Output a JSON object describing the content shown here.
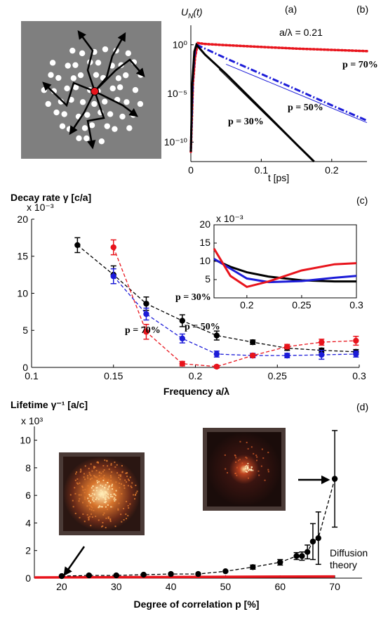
{
  "panel_labels": [
    "(a)",
    "(b)",
    "(c)",
    "(d)"
  ],
  "chart_data": [
    {
      "type": "line",
      "y_label_parts": [
        "U",
        "N",
        "(t)"
      ],
      "x_label": "t [ps]",
      "log_y": true,
      "xlim": [
        0,
        0.25
      ],
      "xticks": [
        0,
        0.1,
        0.2
      ],
      "ylim": [
        1e-12,
        100
      ],
      "yticks": [
        {
          "value": 1,
          "label": "10⁰"
        },
        {
          "value": 1e-05,
          "label": "10⁻⁵"
        },
        {
          "value": 1e-10,
          "label": "10⁻¹⁰"
        }
      ],
      "annotations": [
        {
          "text": "a/λ = 0.21",
          "color": "#000000"
        },
        {
          "text": "p = 70%",
          "color": "#e8141c"
        },
        {
          "text": "p = 50%",
          "color": "#1c1cd8"
        },
        {
          "text": "p = 30%",
          "color": "#000000"
        }
      ],
      "series": [
        {
          "color": "#e8141c",
          "dash": "dotted",
          "width": 3.5,
          "x": [
            0,
            0.003,
            0.006,
            0.01,
            0.02,
            0.05,
            0.1,
            0.15,
            0.2,
            0.25
          ],
          "values": [
            1e-11,
            0.0001,
            0.05,
            1.5,
            1.2,
            0.9,
            0.6,
            0.4,
            0.3,
            0.22
          ]
        },
        {
          "color": "#1c1cd8",
          "dash": "dashdot",
          "width": 3,
          "x": [
            0,
            0.003,
            0.006,
            0.008,
            0.02,
            0.05,
            0.1,
            0.15,
            0.2,
            0.25
          ],
          "values": [
            1e-11,
            0.001,
            0.3,
            1,
            0.4,
            0.04,
            0.001,
            2.5e-05,
            6e-07,
            1.6e-08
          ]
        },
        {
          "color": "#000000",
          "dash": "solid",
          "width": 3,
          "x": [
            0,
            0.002,
            0.005,
            0.008,
            0.02,
            0.05,
            0.1,
            0.15,
            0.175
          ],
          "values": [
            1e-11,
            0.0001,
            0.2,
            1,
            0.1,
            0.001,
            2.5e-07,
            6e-11,
            1e-12
          ]
        },
        {
          "color": "#000000",
          "dash": "solid",
          "width": 1,
          "x": [
            0.04,
            0.16
          ],
          "values": [
            0.003,
            1e-11
          ]
        },
        {
          "color": "#1c1cd8",
          "dash": "solid",
          "width": 1,
          "x": [
            0.05,
            0.25
          ],
          "values": [
            0.01,
            1e-08
          ]
        },
        {
          "color": "#e8141c",
          "dash": "solid",
          "width": 1,
          "x": [
            0.01,
            0.25
          ],
          "values": [
            1.2,
            0.2
          ]
        }
      ]
    },
    {
      "type": "errorbar",
      "title": "Decay rate γ [c/a]",
      "y_multiplier": "x 10⁻³",
      "x_label": "Frequency a/λ",
      "xlim": [
        0.1,
        0.3
      ],
      "xticks": [
        0.1,
        0.15,
        0.2,
        0.25,
        0.3
      ],
      "ylim": [
        0,
        20
      ],
      "yticks": [
        0,
        5,
        10,
        15,
        20
      ],
      "annotations": [
        {
          "text": "p = 30%",
          "color": "#000000"
        },
        {
          "text": "p = 50%",
          "color": "#1c1cd8"
        },
        {
          "text": "p = 70%",
          "color": "#e8141c"
        }
      ],
      "series": [
        {
          "color": "#000000",
          "dash": "dashed",
          "width": 1.3,
          "x": [
            0.128,
            0.15,
            0.17,
            0.192,
            0.213,
            0.235,
            0.256,
            0.277,
            0.298
          ],
          "values": [
            16.5,
            12.5,
            8.6,
            6.3,
            4.3,
            3.4,
            2.6,
            2.3,
            2.1
          ],
          "errors": [
            1,
            1.2,
            0.9,
            0.8,
            0.6,
            0.3,
            0.3,
            0.3,
            0.3
          ]
        },
        {
          "color": "#1c1cd8",
          "dash": "dashed",
          "width": 1.3,
          "x": [
            0.15,
            0.17,
            0.192,
            0.213,
            0.235,
            0.256,
            0.277,
            0.298
          ],
          "values": [
            12.3,
            7.2,
            3.9,
            1.8,
            1.6,
            1.6,
            1.7,
            1.8
          ],
          "errors": [
            1,
            0.8,
            0.6,
            0.4,
            0.3,
            0.3,
            0.6,
            0.4
          ]
        },
        {
          "color": "#e8141c",
          "dash": "dashed",
          "width": 1.3,
          "x": [
            0.15,
            0.17,
            0.192,
            0.213,
            0.235,
            0.256,
            0.277,
            0.298
          ],
          "values": [
            16.2,
            4.8,
            0.5,
            0.1,
            1.6,
            2.8,
            3.4,
            3.6
          ],
          "errors": [
            1,
            1,
            0.3,
            0.2,
            0.2,
            0.3,
            0.4,
            0.6
          ]
        }
      ]
    },
    {
      "type": "line",
      "y_multiplier": "x 10⁻³",
      "xlim": [
        0.17,
        0.3
      ],
      "xticks": [
        0.2,
        0.25,
        0.3
      ],
      "ylim": [
        0,
        20
      ],
      "yticks": [
        5,
        10,
        15,
        20
      ],
      "series": [
        {
          "color": "#000000",
          "dash": "solid",
          "width": 3,
          "x": [
            0.17,
            0.185,
            0.2,
            0.22,
            0.25,
            0.28,
            0.3
          ],
          "values": [
            10.5,
            8.5,
            7,
            5.8,
            4.8,
            4.5,
            4.5
          ]
        },
        {
          "color": "#1c1cd8",
          "dash": "solid",
          "width": 3,
          "x": [
            0.17,
            0.185,
            0.2,
            0.22,
            0.25,
            0.28,
            0.3
          ],
          "values": [
            10.7,
            8,
            5.3,
            4.3,
            4.6,
            5.5,
            6
          ]
        },
        {
          "color": "#e8141c",
          "dash": "solid",
          "width": 3,
          "x": [
            0.17,
            0.185,
            0.2,
            0.22,
            0.25,
            0.28,
            0.3
          ],
          "values": [
            13.5,
            6,
            3,
            4.5,
            7.5,
            9.2,
            9.5
          ]
        }
      ]
    },
    {
      "type": "errorbar",
      "title": "Lifetime γ⁻¹ [a/c]",
      "y_multiplier": "x 10³",
      "x_label": "Degree of correlation p [%]",
      "xlim": [
        15,
        75
      ],
      "xticks": [
        20,
        30,
        40,
        50,
        60,
        70
      ],
      "ylim": [
        0,
        11
      ],
      "yticks": [
        0,
        2,
        4,
        6,
        8,
        10
      ],
      "annotations": [
        {
          "text": "Diffusion",
          "color": "#e8141c"
        },
        {
          "text": "theory",
          "color": "#e8141c"
        }
      ],
      "series": [
        {
          "color": "#e8141c",
          "dash": "solid",
          "width": 3.5,
          "x": [
            15,
            70
          ],
          "values": [
            0.05,
            0.12
          ]
        },
        {
          "color": "#000000",
          "dash": "dashed",
          "width": 1.3,
          "x": [
            20,
            25,
            30,
            35,
            40,
            45,
            50,
            55,
            60,
            63,
            64,
            65,
            66,
            67,
            70
          ],
          "values": [
            0.15,
            0.2,
            0.2,
            0.25,
            0.3,
            0.3,
            0.5,
            0.8,
            1.15,
            1.6,
            1.6,
            1.9,
            2.65,
            2.9,
            7.2
          ],
          "errors": [
            0.05,
            0.05,
            0.05,
            0.05,
            0.05,
            0.05,
            0.05,
            0.15,
            0.2,
            0.25,
            0.3,
            0.5,
            1.3,
            1.9,
            3.5
          ]
        }
      ]
    }
  ]
}
